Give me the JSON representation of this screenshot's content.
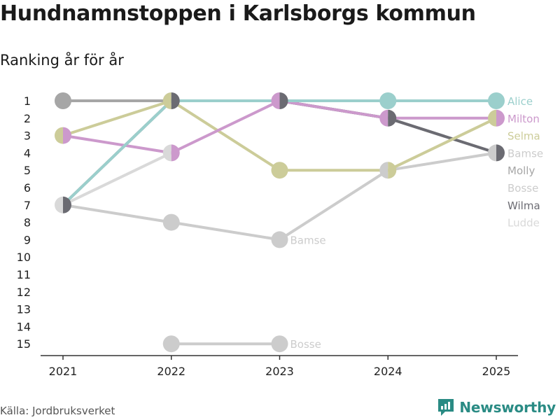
{
  "header": {
    "title": "Hundnamnstoppen i Karlsborgs kommun",
    "subtitle": "Ranking år för år"
  },
  "footer": {
    "source": "Källa: Jordbruksverket",
    "brand": "Newsworthy"
  },
  "colors": {
    "Alice": "#9bcfcc",
    "Milton": "#cc99cc",
    "Selma": "#cccc99",
    "Bamse": "#cccccc",
    "Molly": "#a6a6a6",
    "Bosse": "#cccccc",
    "Wilma": "#6b6b72",
    "Ludde": "#d9d9d9",
    "axis": "#333333",
    "brand": "#2a8b84"
  },
  "chart_data": {
    "type": "line",
    "title": "Hundnamnstoppen i Karlsborgs kommun",
    "subtitle": "Ranking år för år",
    "x": [
      "2021",
      "2022",
      "2023",
      "2024",
      "2025"
    ],
    "y_ticks": [
      "1",
      "2",
      "3",
      "4",
      "5",
      "6",
      "7",
      "8",
      "9",
      "10",
      "11",
      "12",
      "13",
      "14",
      "15"
    ],
    "ylim": [
      1,
      15
    ],
    "y_reversed": true,
    "series": [
      {
        "name": "Alice",
        "values": [
          7,
          1,
          1,
          1,
          1
        ]
      },
      {
        "name": "Milton",
        "values": [
          3,
          4,
          1,
          2,
          2
        ]
      },
      {
        "name": "Selma",
        "values": [
          3,
          1,
          5,
          5,
          2
        ]
      },
      {
        "name": "Bamse",
        "values": [
          7,
          8,
          9,
          5,
          4
        ]
      },
      {
        "name": "Molly",
        "values": [
          1,
          1,
          1,
          2,
          4
        ]
      },
      {
        "name": "Bosse",
        "values": [
          null,
          15,
          15,
          null,
          null
        ]
      },
      {
        "name": "Wilma",
        "values": [
          7,
          1,
          1,
          2,
          4
        ]
      },
      {
        "name": "Ludde",
        "values": [
          7,
          4,
          null,
          null,
          null
        ]
      }
    ],
    "legend_labels": [
      "Alice",
      "Milton",
      "Selma",
      "Bamse",
      "Molly",
      "Bosse",
      "Wilma",
      "Ludde"
    ],
    "inline_labels": [
      {
        "text": "Bamse",
        "series": "Bamse",
        "x": "2023",
        "rank": 9
      },
      {
        "text": "Bosse",
        "series": "Bosse",
        "x": "2023",
        "rank": 15
      }
    ]
  }
}
